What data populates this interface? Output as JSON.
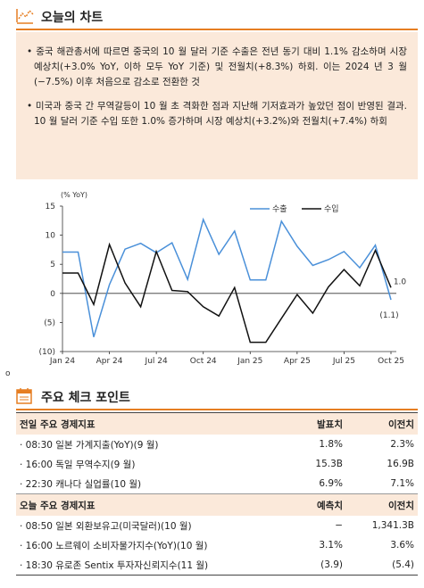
{
  "section1": {
    "title": "오늘의 차트",
    "icon": "chart-icon"
  },
  "bullets": [
    "• 중국 해관총서에 따르면 중국의 10 월 달러 기준 수출은 전년 동기 대비 1.1% 감소하며 시장 예상치(+3.0% YoY, 이하 모두 YoY 기준) 및 전월치(+8.3%) 하회. 이는 2024 년 3 월(−7.5%) 이후 처음으로 감소로 전환한 것",
    "• 미국과 중국 간 무역갈등이 10 월 초 격화한 점과 지난해 기저효과가 높았던 점이 반영된 결과. 10 월 달러 기준 수입 또한 1.0% 증가하며 시장 예상치(+3.2%)와 전월치(+7.4%) 하회"
  ],
  "stray_mark": "o",
  "chart_data": {
    "type": "line",
    "unit_label": "(% YoY)",
    "ylim": [
      -10,
      15
    ],
    "yticks": [
      "15",
      "10",
      "5",
      "0",
      "(5)",
      "(10)"
    ],
    "ytick_values": [
      15,
      10,
      5,
      0,
      -5,
      -10
    ],
    "xtick_labels": [
      "Jan 24",
      "Apr 24",
      "Jul 24",
      "Oct 24",
      "Jan 25",
      "Apr 25",
      "Jul 25",
      "Oct 25"
    ],
    "xtick_index": [
      0,
      3,
      6,
      9,
      12,
      15,
      18,
      21
    ],
    "x": [
      "2024-01",
      "2024-02",
      "2024-03",
      "2024-04",
      "2024-05",
      "2024-06",
      "2024-07",
      "2024-08",
      "2024-09",
      "2024-10",
      "2024-11",
      "2024-12",
      "2025-01",
      "2025-02",
      "2025-03",
      "2025-04",
      "2025-05",
      "2025-06",
      "2025-07",
      "2025-08",
      "2025-09",
      "2025-10"
    ],
    "series": [
      {
        "name": "수출",
        "color": "#4a90d9",
        "values": [
          7.1,
          7.1,
          -7.5,
          1.5,
          7.6,
          8.6,
          7.0,
          8.7,
          2.4,
          12.7,
          6.7,
          10.7,
          2.3,
          2.3,
          12.4,
          8.1,
          4.8,
          5.8,
          7.2,
          4.4,
          8.3,
          -1.1
        ]
      },
      {
        "name": "수입",
        "color": "#111111",
        "values": [
          3.5,
          3.5,
          -1.9,
          8.4,
          1.8,
          -2.3,
          7.2,
          0.5,
          0.3,
          -2.3,
          -3.9,
          1.0,
          -8.4,
          -8.4,
          -4.3,
          -0.2,
          -3.4,
          1.1,
          4.1,
          1.3,
          7.4,
          1.0
        ]
      }
    ],
    "end_labels": [
      "1.0",
      "(1.1)"
    ],
    "legend_position": "top-right",
    "grid": false
  },
  "section2": {
    "title": "주요 체크 포인트",
    "icon": "calendar-icon"
  },
  "table": {
    "prev": {
      "header": [
        "전일 주요 경제지표",
        "발표치",
        "이전치"
      ],
      "rows": [
        [
          "· 08:30 일본 가계지출(YoY)(9 월)",
          "1.8%",
          "2.3%"
        ],
        [
          "· 16:00 독일 무역수지(9 월)",
          "15.3B",
          "16.9B"
        ],
        [
          "· 22:30 캐나다 실업률(10 월)",
          "6.9%",
          "7.1%"
        ]
      ]
    },
    "today": {
      "header": [
        "오늘 주요 경제지표",
        "예측치",
        "이전치"
      ],
      "rows": [
        [
          "· 08:50 일본 외환보유고(미국달러)(10 월)",
          "−",
          "1,341.3B"
        ],
        [
          "· 16:00 노르웨이 소비자물가지수(YoY)(10 월)",
          "3.1%",
          "3.6%"
        ],
        [
          "· 18:30 유로존 Sentix 투자자신뢰지수(11 월)",
          "(3.9)",
          "(5.4)"
        ]
      ]
    }
  }
}
